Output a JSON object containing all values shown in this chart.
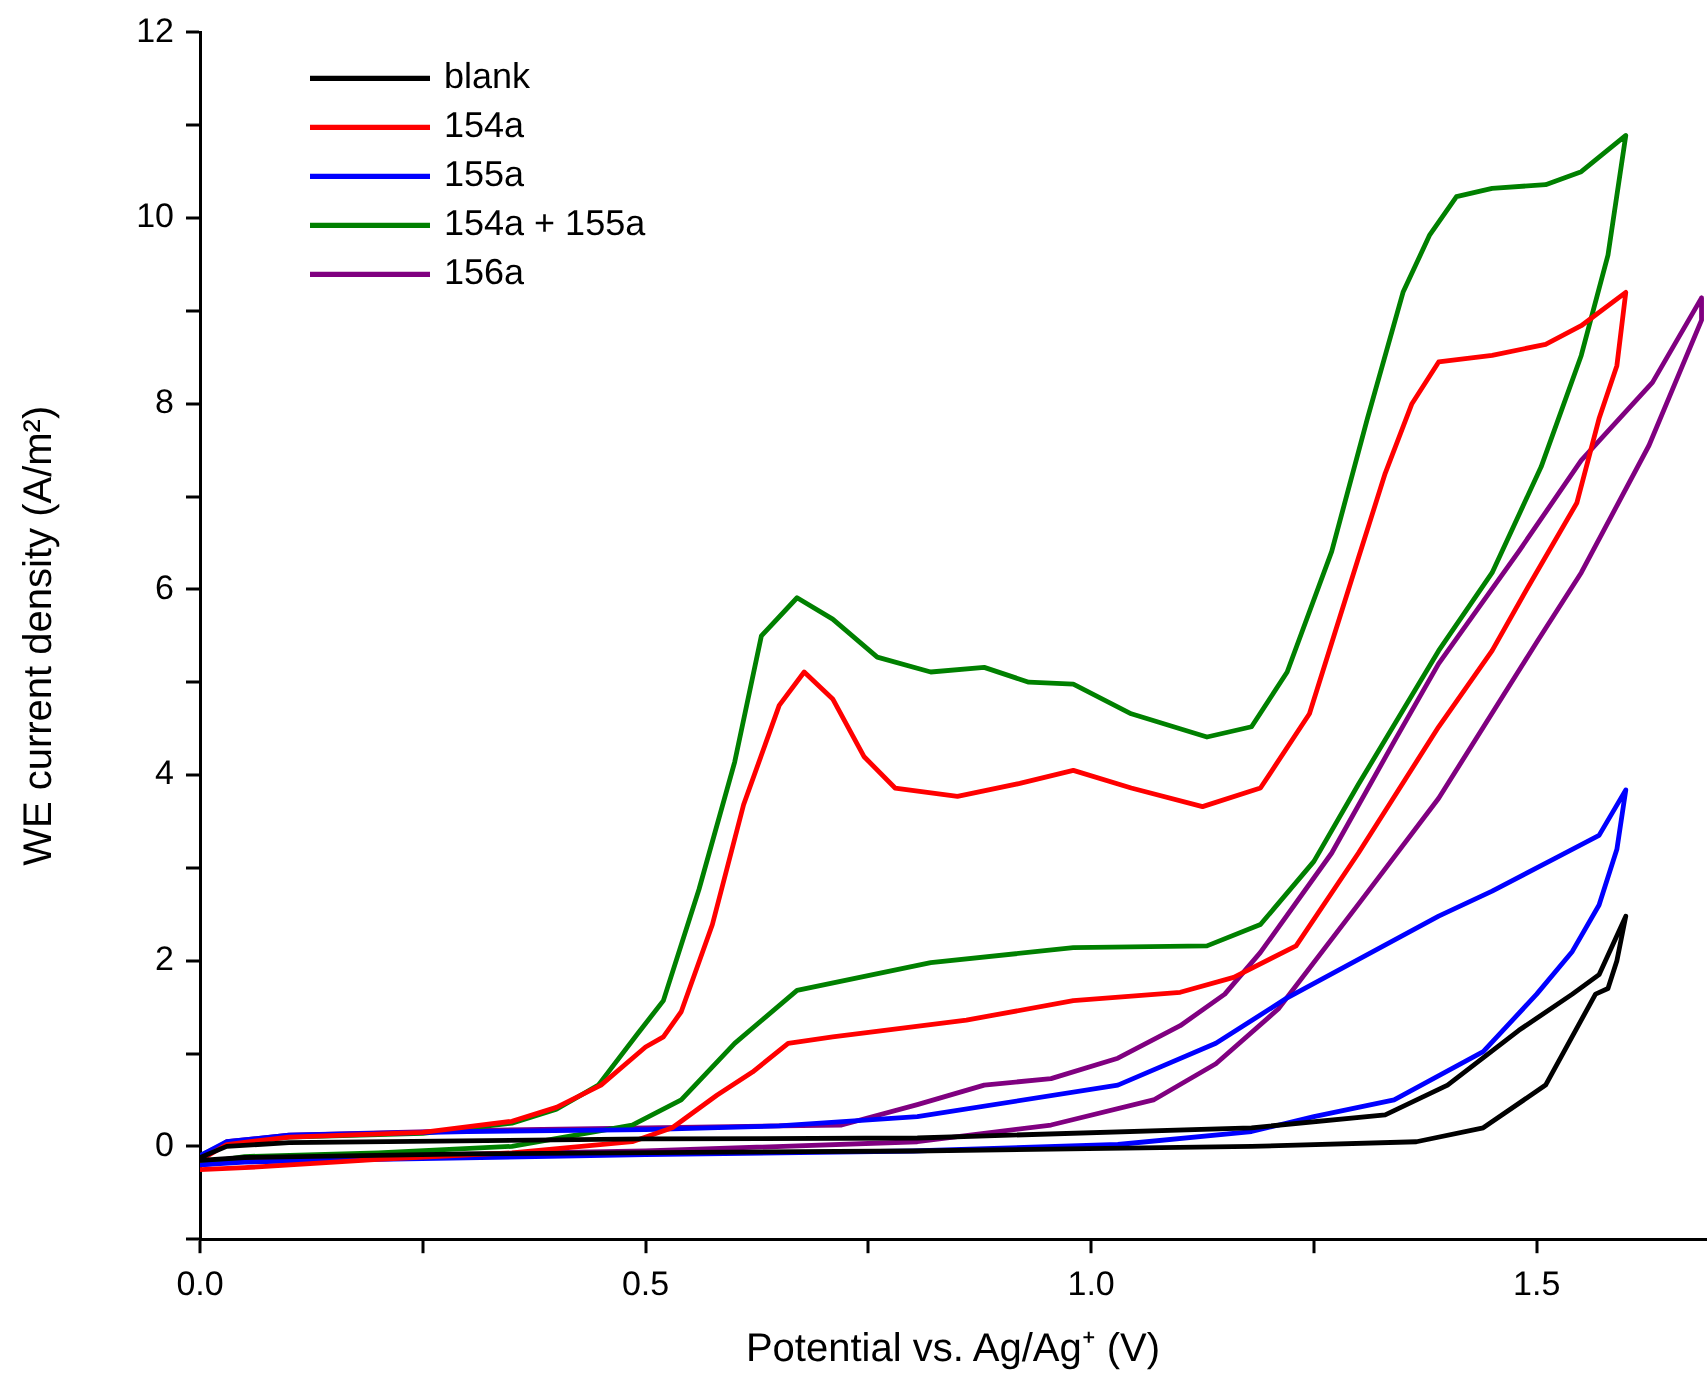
{
  "chart_data": {
    "type": "line",
    "xlabel": "Potential vs. Ag/Ag⁺ (V)",
    "ylabel": "WE current density (A/m²)",
    "xlim": [
      0,
      1.69
    ],
    "ylim": [
      -1,
      12
    ],
    "xticks": [
      {
        "value": 0,
        "label": "0.0"
      },
      {
        "value": 0.25,
        "label": null
      },
      {
        "value": 0.5,
        "label": "0.5"
      },
      {
        "value": 0.75,
        "label": null
      },
      {
        "value": 1,
        "label": "1.0"
      },
      {
        "value": 1.25,
        "label": null
      },
      {
        "value": 1.5,
        "label": "1.5"
      }
    ],
    "yticks": [
      {
        "value": -1,
        "label": null
      },
      0,
      {
        "value": 1,
        "label": null
      },
      2,
      {
        "value": 3,
        "label": null
      },
      4,
      {
        "value": 5,
        "label": null
      },
      6,
      {
        "value": 7,
        "label": null
      },
      8,
      {
        "value": 9,
        "label": null
      },
      10,
      {
        "value": 11,
        "label": null
      },
      12
    ],
    "legend": "top left",
    "marker": "none",
    "line_style": "solid",
    "series": [
      {
        "name": "blank",
        "color": "#000000",
        "x": [
          0,
          0.03,
          0.1,
          0.5,
          0.805,
          1.18,
          1.33,
          1.4,
          1.48,
          1.54,
          1.57,
          1.6,
          1.59,
          1.58,
          1.566,
          1.51,
          1.44,
          1.365,
          1.18,
          0.8,
          0.3,
          0.05,
          0
        ],
        "values": [
          -0.12,
          0,
          0.04,
          0.08,
          0.09,
          0.2,
          0.34,
          0.66,
          1.25,
          1.64,
          1.85,
          2.48,
          2,
          1.7,
          1.64,
          0.66,
          0.2,
          0.05,
          0,
          -0.05,
          -0.08,
          -0.12,
          -0.15
        ]
      },
      {
        "name": "154a",
        "color": "#ff0000",
        "x": [
          0,
          0.03,
          0.1,
          0.25,
          0.35,
          0.4,
          0.45,
          0.5,
          0.52,
          0.54,
          0.575,
          0.61,
          0.65,
          0.678,
          0.71,
          0.745,
          0.78,
          0.85,
          0.92,
          0.98,
          1.045,
          1.125,
          1.19,
          1.245,
          1.3,
          1.33,
          1.36,
          1.39,
          1.45,
          1.51,
          1.55,
          1.6,
          1.59,
          1.57,
          1.545,
          1.49,
          1.45,
          1.39,
          1.3,
          1.23,
          1.16,
          1.1,
          0.98,
          0.86,
          0.71,
          0.66,
          0.62,
          0.58,
          0.53,
          0.485,
          0.35,
          0.2,
          0.05,
          0
        ],
        "values": [
          -0.15,
          0.02,
          0.1,
          0.15,
          0.27,
          0.42,
          0.66,
          1.07,
          1.18,
          1.45,
          2.39,
          3.68,
          4.75,
          5.11,
          4.82,
          4.2,
          3.86,
          3.77,
          3.91,
          4.05,
          3.86,
          3.66,
          3.86,
          4.66,
          6.34,
          7.25,
          8,
          8.45,
          8.52,
          8.64,
          8.84,
          9.2,
          8.41,
          7.84,
          6.93,
          6.02,
          5.34,
          4.52,
          3.16,
          2.16,
          1.82,
          1.66,
          1.57,
          1.36,
          1.18,
          1.11,
          0.8,
          0.55,
          0.2,
          0.05,
          -0.07,
          -0.14,
          -0.23,
          -0.25
        ]
      },
      {
        "name": "155a",
        "color": "#0000ff",
        "x": [
          0,
          0.03,
          0.1,
          0.3,
          0.5,
          0.65,
          0.805,
          1.03,
          1.14,
          1.22,
          1.39,
          1.45,
          1.52,
          1.57,
          1.6,
          1.59,
          1.57,
          1.54,
          1.5,
          1.44,
          1.34,
          1.25,
          1.18,
          1.03,
          0.8,
          0.5,
          0.2,
          0.05,
          0
        ],
        "values": [
          -0.1,
          0.05,
          0.12,
          0.16,
          0.18,
          0.22,
          0.32,
          0.66,
          1.11,
          1.6,
          2.48,
          2.75,
          3.1,
          3.35,
          3.84,
          3.2,
          2.6,
          2.1,
          1.64,
          1.02,
          0.5,
          0.32,
          0.16,
          0.02,
          -0.05,
          -0.09,
          -0.14,
          -0.17,
          -0.2
        ]
      },
      {
        "name": "154a + 155a",
        "color": "#008000",
        "x": [
          0,
          0.03,
          0.1,
          0.25,
          0.35,
          0.4,
          0.447,
          0.49,
          0.52,
          0.56,
          0.6,
          0.63,
          0.67,
          0.71,
          0.76,
          0.82,
          0.88,
          0.93,
          0.98,
          1.045,
          1.13,
          1.18,
          1.22,
          1.27,
          1.31,
          1.35,
          1.38,
          1.41,
          1.45,
          1.51,
          1.55,
          1.6,
          1.58,
          1.55,
          1.505,
          1.45,
          1.39,
          1.3,
          1.25,
          1.19,
          1.13,
          0.98,
          0.82,
          0.67,
          0.6,
          0.54,
          0.485,
          0.35,
          0.2,
          0.05,
          0
        ],
        "values": [
          -0.1,
          0.04,
          0.1,
          0.14,
          0.25,
          0.4,
          0.66,
          1.2,
          1.57,
          2.77,
          4.14,
          5.5,
          5.91,
          5.68,
          5.27,
          5.11,
          5.16,
          5,
          4.98,
          4.66,
          4.41,
          4.52,
          5.11,
          6.41,
          7.84,
          9.2,
          9.82,
          10.23,
          10.32,
          10.36,
          10.5,
          10.89,
          9.6,
          8.52,
          7.32,
          6.18,
          5.34,
          3.9,
          3.07,
          2.39,
          2.16,
          2.14,
          1.98,
          1.68,
          1.11,
          0.5,
          0.23,
          0,
          -0.07,
          -0.11,
          -0.18
        ]
      },
      {
        "name": "156a",
        "color": "#800080",
        "x": [
          0,
          0.03,
          0.1,
          0.3,
          0.5,
          0.72,
          0.805,
          0.88,
          0.955,
          1.03,
          1.1,
          1.15,
          1.19,
          1.27,
          1.34,
          1.39,
          1.48,
          1.55,
          1.63,
          1.685,
          1.685,
          1.626,
          1.55,
          1.5,
          1.39,
          1.3,
          1.21,
          1.14,
          1.07,
          0.955,
          0.805,
          0.5,
          0.2,
          0.05,
          0
        ],
        "values": [
          -0.15,
          0.05,
          0.12,
          0.17,
          0.2,
          0.23,
          0.45,
          0.66,
          0.73,
          0.95,
          1.3,
          1.64,
          2.09,
          3.16,
          4.36,
          5.2,
          6.41,
          7.39,
          8.23,
          9.14,
          8.9,
          7.55,
          6.18,
          5.43,
          3.75,
          2.61,
          1.48,
          0.89,
          0.5,
          0.23,
          0.05,
          -0.05,
          -0.1,
          -0.15,
          -0.2
        ]
      }
    ]
  }
}
